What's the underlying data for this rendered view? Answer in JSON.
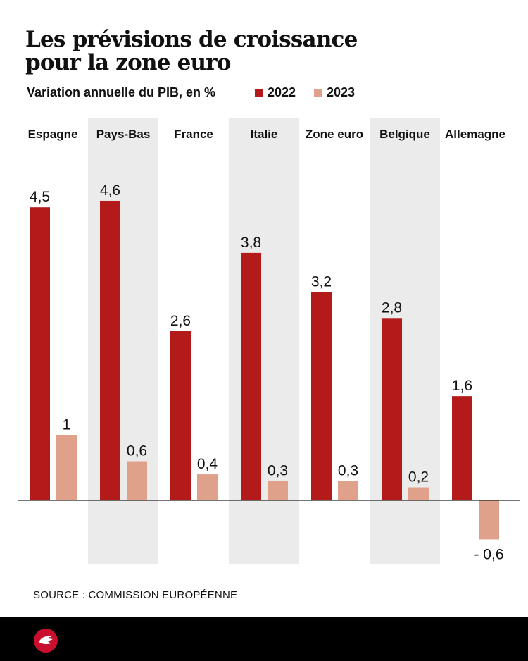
{
  "title_line1": "Les prévisions de croissance",
  "title_line2": "pour la zone euro",
  "subtitle": "Variation annuelle du PIB, en %",
  "source": "SOURCE : COMMISSION EUROPÉENNE",
  "colors": {
    "series_2022": "#b31b1b",
    "series_2023": "#e0a18a",
    "band": "#ebebeb",
    "axis": "#222222",
    "logo": "#c8102e"
  },
  "logo_icon": "publisher-logo-icon",
  "chart_data": {
    "type": "bar",
    "categories": [
      "Espagne",
      "Pays-Bas",
      "France",
      "Italie",
      "Zone euro",
      "Belgique",
      "Allemagne"
    ],
    "series": [
      {
        "name": "2022",
        "values": [
          4.5,
          4.6,
          2.6,
          3.8,
          3.2,
          2.8,
          1.6
        ],
        "labels": [
          "4,5",
          "4,6",
          "2,6",
          "3,8",
          "3,2",
          "2,8",
          "1,6"
        ]
      },
      {
        "name": "2023",
        "values": [
          1,
          0.6,
          0.4,
          0.3,
          0.3,
          0.2,
          -0.6
        ],
        "labels": [
          "1",
          "0,6",
          "0,4",
          "0,3",
          "0,3",
          "0,2",
          "- 0,6"
        ]
      }
    ],
    "ylim": [
      -1,
      5.4
    ],
    "shaded_categories": [
      "Pays-Bas",
      "Italie",
      "Belgique"
    ],
    "grid": false,
    "legend_position": "top-right"
  }
}
